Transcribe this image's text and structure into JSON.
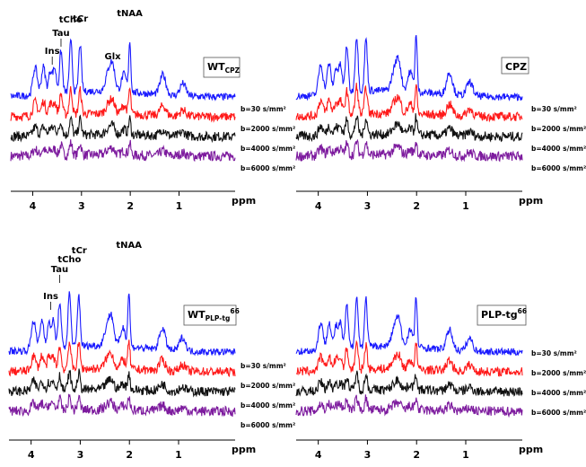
{
  "chart_data": [
    {
      "type": "line",
      "panel_label": "WT",
      "panel_label_sub": "CPZ",
      "panel_label_sup": "",
      "xlabel": "ppm",
      "xlim": [
        4.45,
        -0.15
      ],
      "x_ticks": [
        "4",
        "3",
        "2",
        "1"
      ],
      "x_tick_values": [
        4,
        3,
        2,
        1
      ],
      "annotations": [
        {
          "text": "Ins",
          "ppm": 3.6
        },
        {
          "text": "Tau",
          "ppm": 3.42
        },
        {
          "text": "tCho",
          "ppm": 3.22
        },
        {
          "text": "tCr",
          "ppm": 3.02
        },
        {
          "text": "Glx",
          "ppm": 2.36
        },
        {
          "text": "tNAA",
          "ppm": 2.01
        }
      ],
      "series": [
        {
          "name": "b=30 s/mm²",
          "color": "#1a1aff",
          "b": 30,
          "amplitude": 1.0
        },
        {
          "name": "b=2000 s/mm²",
          "color": "#ff1a1a",
          "b": 2000,
          "amplitude": 0.5
        },
        {
          "name": "b=4000 s/mm²",
          "color": "#111111",
          "b": 4000,
          "amplitude": 0.32
        },
        {
          "name": "b=6000 s/mm²",
          "color": "#7d1b9e",
          "b": 6000,
          "amplitude": 0.24
        }
      ]
    },
    {
      "type": "line",
      "panel_label": "CPZ",
      "panel_label_sub": "",
      "panel_label_sup": "",
      "xlabel": "ppm",
      "xlim": [
        4.45,
        -0.15
      ],
      "x_ticks": [
        "4",
        "3",
        "2",
        "1"
      ],
      "x_tick_values": [
        4,
        3,
        2,
        1
      ],
      "annotations": [],
      "series": [
        {
          "name": "b=30 s/mm²",
          "color": "#1a1aff",
          "b": 30,
          "amplitude": 1.0
        },
        {
          "name": "b=2000 s/mm²",
          "color": "#ff1a1a",
          "b": 2000,
          "amplitude": 0.5
        },
        {
          "name": "b=4000 s/mm²",
          "color": "#111111",
          "b": 4000,
          "amplitude": 0.32
        },
        {
          "name": "b=6000 s/mm²",
          "color": "#7d1b9e",
          "b": 6000,
          "amplitude": 0.24
        }
      ]
    },
    {
      "type": "line",
      "panel_label": "WT",
      "panel_label_sub": "PLP-tg",
      "panel_label_sup": "66",
      "xlabel": "ppm",
      "xlim": [
        4.45,
        -0.15
      ],
      "x_ticks": [
        "4",
        "3",
        "2",
        "1"
      ],
      "x_tick_values": [
        4,
        3,
        2,
        1
      ],
      "annotations": [
        {
          "text": "Ins",
          "ppm": 3.6
        },
        {
          "text": "Tau",
          "ppm": 3.42
        },
        {
          "text": "tCho",
          "ppm": 3.22
        },
        {
          "text": "tCr",
          "ppm": 3.02
        },
        {
          "text": "tNAA",
          "ppm": 2.01
        }
      ],
      "series": [
        {
          "name": "b=30 s/mm²",
          "color": "#1a1aff",
          "b": 30,
          "amplitude": 1.0
        },
        {
          "name": "b=2000 s/mm²",
          "color": "#ff1a1a",
          "b": 2000,
          "amplitude": 0.5
        },
        {
          "name": "b=4000 s/mm²",
          "color": "#111111",
          "b": 4000,
          "amplitude": 0.32
        },
        {
          "name": "b=6000 s/mm²",
          "color": "#7d1b9e",
          "b": 6000,
          "amplitude": 0.24
        }
      ]
    },
    {
      "type": "line",
      "panel_label": "PLP-tg",
      "panel_label_sub": "",
      "panel_label_sup": "66",
      "xlabel": "ppm",
      "xlim": [
        4.45,
        -0.15
      ],
      "x_ticks": [
        "4",
        "3",
        "2",
        "1"
      ],
      "x_tick_values": [
        4,
        3,
        2,
        1
      ],
      "annotations": [],
      "series": [
        {
          "name": "b=30 s/mm²",
          "color": "#1a1aff",
          "b": 30,
          "amplitude": 1.0
        },
        {
          "name": "b=2000 s/mm²",
          "color": "#ff1a1a",
          "b": 2000,
          "amplitude": 0.5
        },
        {
          "name": "b=4000 s/mm²",
          "color": "#111111",
          "b": 4000,
          "amplitude": 0.32
        },
        {
          "name": "b=6000 s/mm²",
          "color": "#7d1b9e",
          "b": 6000,
          "amplitude": 0.24
        }
      ]
    }
  ]
}
